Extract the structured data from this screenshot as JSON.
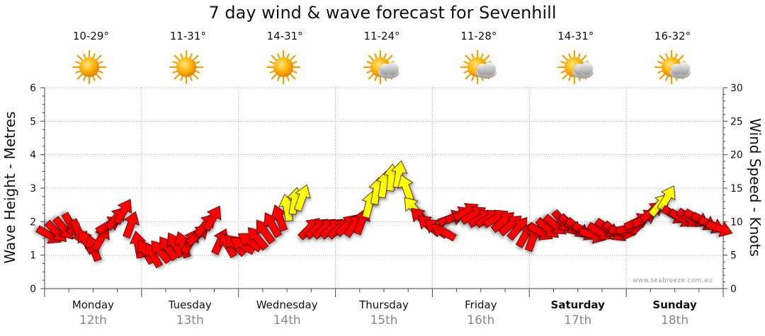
{
  "chart_data": {
    "type": "scatter",
    "title": "7 day wind & wave forecast for Sevenhill",
    "ylabel_left": "Wave Height - Metres",
    "ylabel_right": "Wind Speed - Knots",
    "ylim_left": [
      0,
      6
    ],
    "ylim_right": [
      0,
      30
    ],
    "yticks_left": [
      "0",
      "1",
      "2",
      "3",
      "4",
      "5",
      "6"
    ],
    "yticks_right": [
      "0",
      "5",
      "10",
      "15",
      "20",
      "25",
      "30"
    ],
    "grid": true,
    "days": [
      {
        "name": "Monday",
        "date": "12th",
        "temp": "10-29°",
        "weather": "sunny",
        "bold": false
      },
      {
        "name": "Tuesday",
        "date": "13th",
        "temp": "11-31°",
        "weather": "sunny",
        "bold": false
      },
      {
        "name": "Wednesday",
        "date": "14th",
        "temp": "14-31°",
        "weather": "sunny",
        "bold": false
      },
      {
        "name": "Thursday",
        "date": "15th",
        "temp": "11-24°",
        "weather": "partly-cloudy",
        "bold": false
      },
      {
        "name": "Friday",
        "date": "16th",
        "temp": "11-28°",
        "weather": "partly-cloudy",
        "bold": false
      },
      {
        "name": "Saturday",
        "date": "17th",
        "temp": "14-31°",
        "weather": "partly-cloudy",
        "bold": true
      },
      {
        "name": "Sunday",
        "date": "18th",
        "temp": "16-32°",
        "weather": "partly-cloudy",
        "bold": true
      }
    ],
    "wind_knots": [
      8,
      8.5,
      9,
      9.5,
      8.5,
      7,
      6,
      7.5,
      9.5,
      10.5,
      11.5,
      9.5,
      6.5,
      5.5,
      5,
      5.5,
      6,
      6.5,
      6.5,
      7,
      8,
      9.5,
      10.5,
      7,
      6.5,
      6.5,
      6.5,
      7,
      7.5,
      8.5,
      9.5,
      10.5,
      12,
      13,
      13.5,
      9,
      9,
      9,
      9,
      9,
      9.5,
      9.5,
      10,
      12.5,
      14.5,
      15.5,
      16.5,
      17,
      15,
      12,
      10.5,
      9.5,
      9,
      8.5,
      10.5,
      11,
      11.5,
      11,
      10.5,
      10.5,
      10.5,
      10,
      9.5,
      9,
      8,
      7.5,
      8.5,
      9,
      9.5,
      10,
      9.5,
      9,
      8.5,
      8,
      8.5,
      9,
      8.5,
      8.5,
      9,
      10,
      10.5,
      11.5,
      12.5,
      13.5,
      11,
      10.5,
      10.5,
      10.5,
      10,
      9.5,
      9
    ],
    "wind_dir_deg": [
      300,
      315,
      320,
      330,
      335,
      150,
      160,
      210,
      240,
      220,
      210,
      200,
      170,
      150,
      150,
      140,
      145,
      150,
      160,
      210,
      230,
      220,
      210,
      205,
      150,
      135,
      120,
      125,
      140,
      145,
      150,
      160,
      170,
      190,
      200,
      225,
      230,
      230,
      230,
      230,
      225,
      215,
      200,
      195,
      190,
      190,
      185,
      190,
      160,
      140,
      135,
      130,
      125,
      120,
      250,
      245,
      240,
      240,
      240,
      240,
      240,
      230,
      230,
      220,
      210,
      200,
      300,
      310,
      310,
      320,
      315,
      310,
      300,
      290,
      300,
      305,
      310,
      280,
      260,
      245,
      240,
      230,
      220,
      210,
      300,
      300,
      305,
      300,
      300,
      295,
      290
    ],
    "color_scale": {
      "below_12kn": "#ff0000",
      "12_to_20kn": "#ffff00"
    }
  },
  "credit": "www.seabreeze.com.au"
}
